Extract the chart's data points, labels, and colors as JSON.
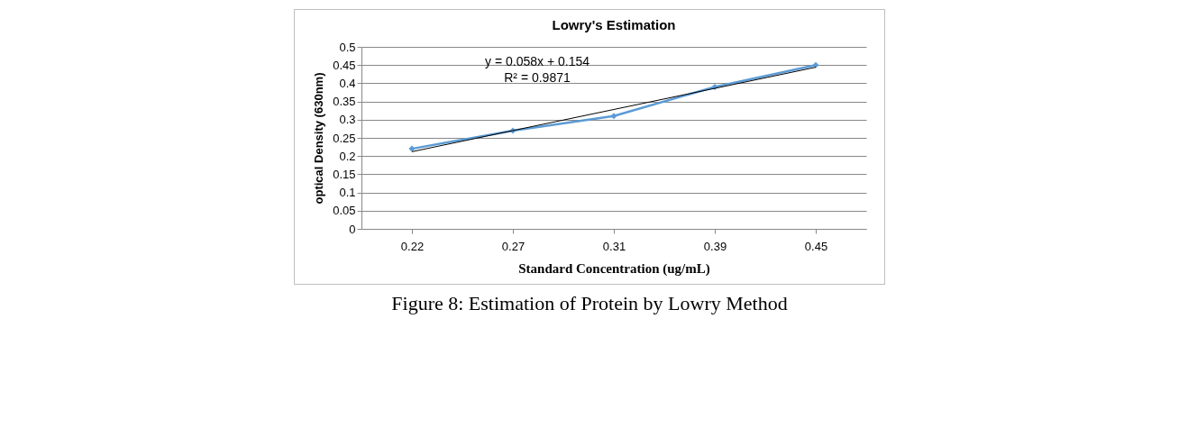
{
  "chart_data": {
    "type": "line",
    "title": "Lowry's Estimation",
    "xlabel": "Standard Concentration (ug/mL)",
    "ylabel": "optical Density (630nm)",
    "categories": [
      "0.22",
      "0.27",
      "0.31",
      "0.39",
      "0.45"
    ],
    "series": [
      {
        "color": "#5b9bd5",
        "values": [
          0.22,
          0.27,
          0.31,
          0.39,
          0.45
        ],
        "marker": "diamond"
      },
      {
        "type": "line",
        "color": "#000000",
        "values": [
          0.212,
          0.27,
          0.328,
          0.386,
          0.444
        ],
        "marker": "none"
      }
    ],
    "ylim": [
      0,
      0.5
    ],
    "yticks": [
      0,
      0.05,
      0.1,
      0.15,
      0.2,
      0.25,
      0.3,
      0.35,
      0.4,
      0.45,
      0.5
    ],
    "grid": "y",
    "legend": false,
    "annotations": [
      "y = 0.058x + 0.154",
      "R² = 0.9871",
      "Figure 8: Estimation of Protein by Lowry Method"
    ]
  }
}
